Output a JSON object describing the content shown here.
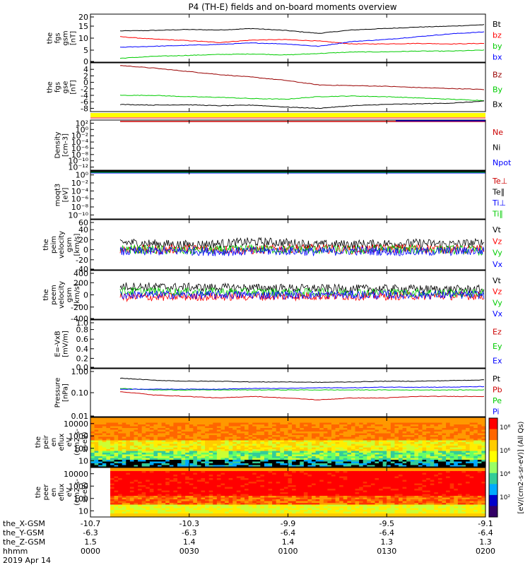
{
  "title": "P4 (TH-E) fields and on-board moments overview",
  "chart_data": [
    {
      "type": "line",
      "ylabel": [
        "the",
        "fgs",
        "gsm",
        "[nT]"
      ],
      "ylim": [
        0,
        20
      ],
      "yticks": [
        "20",
        "15",
        "10",
        "5",
        "0"
      ],
      "yvals": [
        20,
        15,
        10,
        5,
        0
      ],
      "series": [
        {
          "name": "Bt",
          "color": "#000000",
          "values": [
            13.0,
            13.2,
            13.6,
            13.4,
            14.0,
            13.2,
            12.0,
            13.4,
            14.0,
            14.6,
            15.0,
            15.6
          ]
        },
        {
          "name": "bz",
          "color": "#ff0000",
          "values": [
            10.6,
            9.6,
            9.0,
            8.2,
            9.2,
            9.4,
            8.8,
            7.6,
            7.6,
            7.8,
            7.6,
            7.8
          ]
        },
        {
          "name": "by",
          "color": "#00cc00",
          "values": [
            1.6,
            2.4,
            2.8,
            3.2,
            3.4,
            3.0,
            3.6,
            4.2,
            4.3,
            4.6,
            4.6,
            5.0
          ]
        },
        {
          "name": "bx",
          "color": "#0000ff",
          "values": [
            6.2,
            6.6,
            7.0,
            7.4,
            8.0,
            7.6,
            6.6,
            8.6,
            9.4,
            10.6,
            11.8,
            12.6
          ]
        }
      ]
    },
    {
      "type": "line",
      "ylabel": [
        "the",
        "fgs",
        "gse",
        "[nT]"
      ],
      "ylim": [
        -9,
        6
      ],
      "yticks": [
        "4",
        "2",
        "0",
        "-2",
        "-4",
        "-6",
        "-8"
      ],
      "yvals": [
        4,
        2,
        0,
        -2,
        -4,
        -6,
        -8
      ],
      "series": [
        {
          "name": "Bz",
          "color": "#990000",
          "values": [
            5.2,
            4.4,
            3.4,
            2.4,
            1.6,
            0.6,
            -0.8,
            -1.0,
            -1.2,
            -1.6,
            -1.9,
            -2.2
          ]
        },
        {
          "name": "By",
          "color": "#00cc00",
          "values": [
            -4.0,
            -4.0,
            -4.4,
            -4.6,
            -5.0,
            -5.2,
            -4.4,
            -4.2,
            -4.4,
            -4.8,
            -5.2,
            -5.6
          ]
        },
        {
          "name": "Bx",
          "color": "#000000",
          "values": [
            -6.8,
            -7.0,
            -6.9,
            -7.2,
            -7.0,
            -7.6,
            -8.0,
            -7.2,
            -6.8,
            -6.6,
            -6.4,
            -5.8
          ]
        }
      ]
    },
    {
      "type": "line",
      "ylabel": [
        "Density",
        "[cm-3]"
      ],
      "yscale": "log",
      "yticks": [
        "10²",
        "10⁰",
        "10⁻²",
        "10⁻⁴",
        "10⁻⁶",
        "10⁻⁸",
        "10⁻¹⁰",
        "10⁻¹²"
      ],
      "series": [
        {
          "name": "Ne",
          "color": "#cc0000",
          "values": []
        },
        {
          "name": "Ni",
          "color": "#000000",
          "values": []
        },
        {
          "name": "Npot",
          "color": "#0000ff",
          "values": []
        }
      ]
    },
    {
      "type": "line",
      "ylabel": [
        "moqt3",
        "[eV]"
      ],
      "yscale": "log",
      "yticks": [
        "10⁰",
        "10⁻²",
        "10⁻⁴",
        "10⁻⁶",
        "10⁻⁸",
        "10⁻¹⁰"
      ],
      "series": [
        {
          "name": "Te⊥",
          "color": "#cc0000",
          "values": []
        },
        {
          "name": "Te∥",
          "color": "#000000",
          "values": []
        },
        {
          "name": "Ti⊥",
          "color": "#0000ff",
          "values": []
        },
        {
          "name": "Ti∥",
          "color": "#00cc00",
          "values": []
        }
      ]
    },
    {
      "type": "line",
      "ylabel": [
        "the",
        "peim",
        "velocity",
        "gsm",
        "[km/s]"
      ],
      "ylim": [
        -40,
        60
      ],
      "yticks": [
        "60",
        "40",
        "20",
        "0",
        "-20",
        "-40"
      ],
      "yvals": [
        60,
        40,
        20,
        0,
        -20,
        -40
      ],
      "series": [
        {
          "name": "Vt",
          "color": "#000000",
          "values": [
            15,
            12,
            10,
            12,
            16,
            14,
            10,
            11,
            12,
            13,
            11,
            14
          ]
        },
        {
          "name": "Vz",
          "color": "#ff0000",
          "values": [
            2,
            0,
            2,
            1,
            -1,
            3,
            2,
            0,
            2,
            3,
            1,
            0
          ]
        },
        {
          "name": "Vy",
          "color": "#00cc00",
          "values": [
            1,
            0,
            -2,
            -1,
            2,
            0,
            0,
            -1,
            1,
            0,
            0,
            -2
          ]
        },
        {
          "name": "Vx",
          "color": "#0000ff",
          "values": [
            -4,
            -3,
            -2,
            -4,
            -3,
            -2,
            -4,
            -2,
            -3,
            -4,
            -3,
            -2
          ]
        }
      ]
    },
    {
      "type": "line",
      "ylabel": [
        "the",
        "peem",
        "velocity",
        "gsm",
        "[km/s]"
      ],
      "ylim": [
        -400,
        400
      ],
      "yticks": [
        "400",
        "200",
        "0",
        "-200",
        "-400"
      ],
      "yvals": [
        400,
        200,
        0,
        -200,
        -400
      ],
      "series": [
        {
          "name": "Vt",
          "color": "#000000",
          "values": [
            140,
            130,
            125,
            120,
            115,
            110,
            105,
            100,
            100,
            95,
            90,
            90
          ]
        },
        {
          "name": "Vz",
          "color": "#ff0000",
          "values": [
            -40,
            -35,
            -30,
            -30,
            -25,
            -25,
            -20,
            -20,
            -20,
            -15,
            -15,
            -15
          ]
        },
        {
          "name": "Vy",
          "color": "#00cc00",
          "values": [
            60,
            55,
            50,
            50,
            45,
            40,
            40,
            40,
            35,
            35,
            30,
            30
          ]
        },
        {
          "name": "Vx",
          "color": "#0000ff",
          "values": [
            0,
            0,
            0,
            0,
            0,
            0,
            0,
            0,
            0,
            0,
            0,
            0
          ]
        }
      ]
    },
    {
      "type": "line",
      "ylabel": [
        "E=-VxB",
        "[mV/m]"
      ],
      "ylim": [
        0,
        1
      ],
      "yticks": [
        "1.0",
        "0.8",
        "0.6",
        "0.4",
        "0.2",
        "0.0"
      ],
      "yvals": [
        1,
        0.8,
        0.6,
        0.4,
        0.2,
        0
      ],
      "series": [
        {
          "name": "Ez",
          "color": "#cc0000",
          "values": []
        },
        {
          "name": "Ey",
          "color": "#00cc00",
          "values": []
        },
        {
          "name": "Ex",
          "color": "#0000ff",
          "values": []
        }
      ]
    },
    {
      "type": "line",
      "ylabel": [
        "Pressure",
        "[nPa]"
      ],
      "yscale": "log",
      "ylim": [
        0.01,
        1.0
      ],
      "yticks": [
        "1.00",
        "0.10",
        "0.01"
      ],
      "yvals": [
        1.0,
        0.1,
        0.01
      ],
      "series": [
        {
          "name": "Pt",
          "color": "#000000",
          "values": [
            0.4,
            0.33,
            0.3,
            0.3,
            0.28,
            0.28,
            0.27,
            0.28,
            0.3,
            0.3,
            0.32,
            0.34
          ]
        },
        {
          "name": "Pb",
          "color": "#cc0000",
          "values": [
            0.11,
            0.08,
            0.07,
            0.06,
            0.07,
            0.06,
            0.05,
            0.06,
            0.06,
            0.07,
            0.07,
            0.07
          ]
        },
        {
          "name": "Pe",
          "color": "#00cc00",
          "values": [
            0.15,
            0.13,
            0.13,
            0.13,
            0.13,
            0.13,
            0.13,
            0.13,
            0.13,
            0.13,
            0.13,
            0.13
          ]
        },
        {
          "name": "Pi",
          "color": "#0000ff",
          "values": [
            0.14,
            0.14,
            0.14,
            0.14,
            0.15,
            0.15,
            0.16,
            0.16,
            0.17,
            0.17,
            0.17,
            0.18
          ]
        }
      ]
    },
    {
      "type": "heatmap",
      "ylabel": [
        "the",
        "peir",
        "en",
        "eflux",
        "eV",
        "(cm2-s-",
        "sr-eV)"
      ],
      "yscale": "log",
      "yticks": [
        "10000",
        "1000",
        "100",
        "10"
      ],
      "yvals": [
        10000,
        1000,
        100,
        10
      ]
    },
    {
      "type": "heatmap",
      "ylabel": [
        "the",
        "peer",
        "en",
        "eflux",
        "eV",
        "(cm2-s-",
        "sr-eV)"
      ],
      "yscale": "log",
      "yticks": [
        "10000",
        "1000",
        "100",
        "10"
      ],
      "yvals": [
        10000,
        1000,
        100,
        10
      ]
    }
  ],
  "colorbar": {
    "ticks": [
      "10⁸",
      "10⁶",
      "10⁴",
      "10²"
    ],
    "label": "[eV/(cm2-s-sr-eV)] (All Qs)"
  },
  "xaxis": {
    "row_labels": [
      "the_X-GSM",
      "the_Y-GSM",
      "the_Z-GSM",
      "hhmm",
      "2019 Apr 14"
    ],
    "columns": [
      {
        "x": "-10.7",
        "y": "-6.3",
        "z": "1.5",
        "t": "0000"
      },
      {
        "x": "-10.3",
        "y": "-6.3",
        "z": "1.4",
        "t": "0030"
      },
      {
        "x": "-9.9",
        "y": "-6.4",
        "z": "1.4",
        "t": "0100"
      },
      {
        "x": "-9.5",
        "y": "-6.4",
        "z": "1.3",
        "t": "0130"
      },
      {
        "x": "-9.1",
        "y": "-6.4",
        "z": "1.3",
        "t": "0200"
      }
    ]
  }
}
